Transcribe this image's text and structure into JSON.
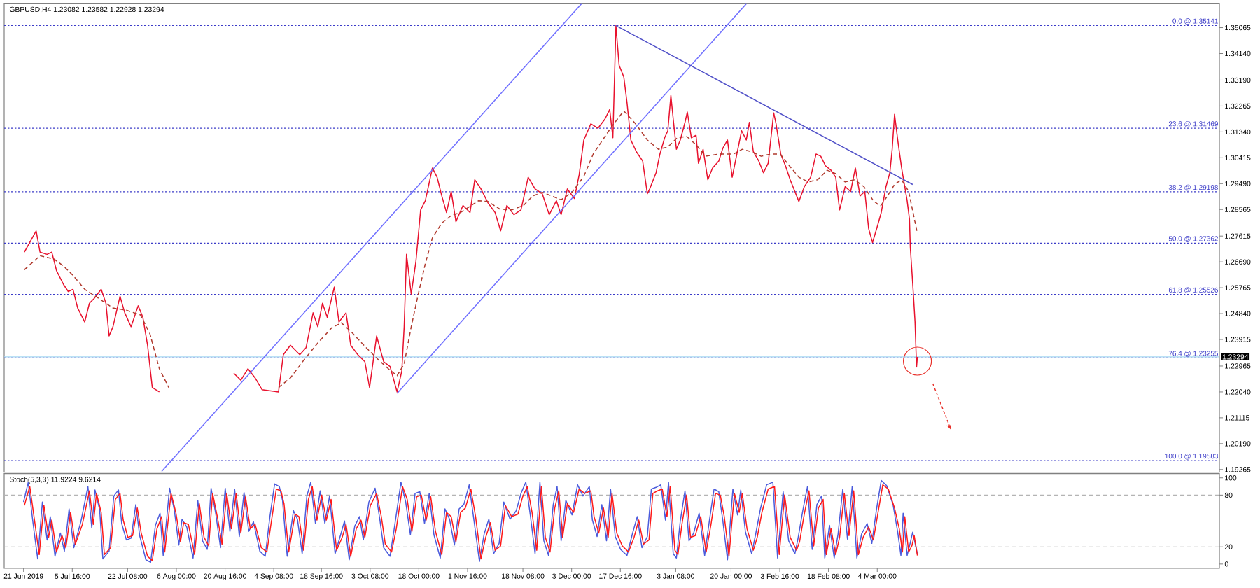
{
  "chart_data": [
    {
      "type": "line",
      "title": "GBPUSD,H4 1.23082 1.23582 1.22928 1.23294",
      "xlim": [
        "2019-06-15T04:00",
        "2020-06-15T00:00"
      ],
      "ylim": [
        1.1917,
        1.3592
      ],
      "yticks": [
        {
          "value": 1.19265,
          "label": "1.19265"
        },
        {
          "value": 1.2019,
          "label": "1.20190"
        },
        {
          "value": 1.21115,
          "label": "1.21115"
        },
        {
          "value": 1.2204,
          "label": "1.22040"
        },
        {
          "value": 1.22965,
          "label": "1.22965"
        },
        {
          "value": 1.23915,
          "label": "1.23915"
        },
        {
          "value": 1.2484,
          "label": "1.24840"
        },
        {
          "value": 1.25765,
          "label": "1.25765"
        },
        {
          "value": 1.2669,
          "label": "1.26690"
        },
        {
          "value": 1.27615,
          "label": "1.27615"
        },
        {
          "value": 1.28565,
          "label": "1.28565"
        },
        {
          "value": 1.2949,
          "label": "1.29490"
        },
        {
          "value": 1.30415,
          "label": "1.30415"
        },
        {
          "value": 1.3134,
          "label": "1.31340"
        },
        {
          "value": 1.32265,
          "label": "1.32265"
        },
        {
          "value": 1.3319,
          "label": "1.33190"
        },
        {
          "value": 1.3414,
          "label": "1.34140"
        },
        {
          "value": 1.35065,
          "label": "1.35065"
        }
      ],
      "ref_lines": [
        {
          "axis": "y",
          "value": 1.23294,
          "label": "1.23294",
          "color": "#a6d8f2"
        },
        {
          "axis": "y",
          "value": 1.35141,
          "label": "0.0 @ 1.35141",
          "color": "#3c3cc8",
          "line_style": "dotted"
        },
        {
          "axis": "y",
          "value": 1.31469,
          "label": "23.6 @ 1.31469",
          "color": "#3c3cc8",
          "line_style": "dotted"
        },
        {
          "axis": "y",
          "value": 1.29198,
          "label": "38.2 @ 1.29198",
          "color": "#3c3cc8",
          "line_style": "dotted"
        },
        {
          "axis": "y",
          "value": 1.27362,
          "label": "50.0 @ 1.27362",
          "color": "#3c3cc8",
          "line_style": "dotted"
        },
        {
          "axis": "y",
          "value": 1.25526,
          "label": "61.8 @ 1.25526",
          "color": "#3c3cc8",
          "line_style": "dotted"
        },
        {
          "axis": "y",
          "value": 1.23255,
          "label": "76.4 @ 1.23255",
          "color": "#3c3cc8",
          "line_style": "dotted"
        },
        {
          "axis": "y",
          "value": 1.19583,
          "label": "100.0 @ 1.19583",
          "color": "#3c3cc8",
          "line_style": "dotted"
        }
      ],
      "series": [
        {
          "color": "#e8112d",
          "x": [
            "2019-06-21T06:00",
            "2019-06-24T19:00",
            "2019-06-25T23:00",
            "2019-06-28T02:00",
            "2019-06-29T12:00",
            "2019-06-30T22:00",
            "2019-07-03T01:00",
            "2019-07-04T11:00",
            "2019-07-05T21:00",
            "2019-07-07T07:00",
            "2019-07-09T10:00",
            "2019-07-10T20:00",
            "2019-07-12T06:00",
            "2019-07-14T09:00",
            "2019-07-15T19:00",
            "2019-07-16T18:00",
            "2019-07-17T22:00",
            "2019-07-20T01:00",
            "2019-07-21T11:00",
            "2019-07-23T09:00",
            "2019-07-25T12:00",
            "2019-07-26T22:00",
            "2019-07-28T08:00",
            "2019-07-29T18:00",
            "2019-07-31T21:00",
            "2019-08-11T23:00",
            "2019-08-23T07:00",
            "2019-08-25T10:00",
            "2019-08-27T13:00",
            "2019-08-29T17:00",
            "2019-08-31T19:00",
            "2019-09-05T18:00",
            "2019-09-07T05:00",
            "2019-09-09T08:00",
            "2019-09-12T04:00",
            "2019-09-14T01:00",
            "2019-09-16T04:00",
            "2019-09-17T14:00",
            "2019-09-19T00:00",
            "2019-09-20T10:00",
            "2019-09-22T13:00",
            "2019-09-23T23:00",
            "2019-09-26T02:00",
            "2019-09-27T12:00",
            "2019-09-29T15:00",
            "2019-10-01T18:00",
            "2019-10-03T04:00",
            "2019-10-05T07:00",
            "2019-10-07T10:00",
            "2019-10-09T08:00",
            "2019-10-11T11:00",
            "2019-10-12T21:00",
            "2019-10-13T14:00",
            "2019-10-14T07:00",
            "2019-10-15T17:00",
            "2019-10-17T03:00",
            "2019-10-18T13:00",
            "2019-10-19T23:00",
            "2019-10-22T02:00",
            "2019-10-23T12:00",
            "2019-10-24T22:00",
            "2019-10-26T08:00",
            "2019-10-27T18:00",
            "2019-10-29T04:00",
            "2019-10-31T07:00",
            "2019-11-02T10:00",
            "2019-11-03T20:00",
            "2019-11-05T17:00",
            "2019-11-07T20:00",
            "2019-11-09T23:00",
            "2019-11-11T15:00",
            "2019-11-13T12:00",
            "2019-11-15T15:00",
            "2019-11-17T18:00",
            "2019-11-19T22:00",
            "2019-11-22T00:00",
            "2019-11-24T04:00",
            "2019-11-26T06:00",
            "2019-11-28T10:00",
            "2019-11-29T20:00",
            "2019-12-01T17:00",
            "2019-12-03T20:00",
            "2019-12-05T06:00",
            "2019-12-06T16:00",
            "2019-12-08T19:00",
            "2019-12-10T22:00",
            "2019-12-13T01:00",
            "2019-12-14T11:00",
            "2019-12-15T10:00",
            "2019-12-16T08:00",
            "2019-12-17T07:00",
            "2019-12-18T17:00",
            "2019-12-19T16:00",
            "2019-12-20T20:00",
            "2019-12-22T12:00",
            "2019-12-24T09:00",
            "2019-12-25T19:00",
            "2019-12-26T12:00",
            "2019-12-28T10:00",
            "2019-12-29T14:00",
            "2019-12-31T00:00",
            "2019-12-31T23:00",
            "2020-01-01T21:00",
            "2020-01-02T14:00",
            "2020-01-03T13:00",
            "2020-01-04T17:00",
            "2020-01-06T03:00",
            "2020-01-06T20:00",
            "2020-01-08T01:00",
            "2020-01-09T11:00",
            "2020-01-10T04:00",
            "2020-01-11T14:00",
            "2020-01-13T00:00",
            "2020-01-14T10:00",
            "2020-01-16T07:00",
            "2020-01-17T12:00",
            "2020-01-18T22:00",
            "2020-01-20T08:00",
            "2020-01-21T18:00",
            "2020-01-23T04:00",
            "2020-01-24T14:00",
            "2020-01-25T12:00",
            "2020-01-26T17:00",
            "2020-01-28T08:00",
            "2020-01-29T18:00",
            "2020-01-31T04:00",
            "2020-02-01T20:00",
            "2020-02-02T13:00",
            "2020-02-03T23:00",
            "2020-02-05T09:00",
            "2020-02-06T19:00",
            "2020-02-08T05:00",
            "2020-02-09T10:00",
            "2020-02-11T01:00",
            "2020-02-12T23:00",
            "2020-02-14T14:00",
            "2020-02-16T00:00",
            "2020-02-17T10:00",
            "2020-02-19T02:00",
            "2020-02-20T12:00",
            "2020-02-21T16:00",
            "2020-02-23T08:00",
            "2020-02-25T00:00",
            "2020-02-26T10:00",
            "2020-02-27T20:00",
            "2020-02-29T06:00",
            "2020-03-01T10:00",
            "2020-03-02T14:00",
            "2020-03-04T06:00",
            "2020-03-05T05:00",
            "2020-03-06T15:00",
            "2020-03-07T19:00",
            "2020-03-08T12:00",
            "2020-03-09T05:00",
            "2020-03-10T04:00",
            "2020-03-11T08:00",
            "2020-03-12T01:00",
            "2020-03-13T00:00",
            "2020-03-13T17:00",
            "2020-03-13T23:00",
            "2020-03-14T10:00",
            "2020-03-14T21:00",
            "2020-03-15T09:00",
            "2020-03-15T20:00",
            "2020-03-16T02:00"
          ],
          "values": [
            1.2704,
            1.278,
            1.2704,
            1.2696,
            1.2704,
            1.2638,
            1.2588,
            1.2563,
            1.2571,
            1.2504,
            1.2454,
            1.2521,
            1.2538,
            1.2571,
            1.2521,
            1.2404,
            1.2437,
            1.2546,
            1.2487,
            1.2437,
            1.2512,
            1.2471,
            1.2371,
            1.222,
            1.2204,
            null,
            1.2271,
            1.2246,
            1.2287,
            1.2254,
            1.2212,
            1.2204,
            1.2337,
            1.2371,
            1.2337,
            1.2362,
            1.2487,
            1.2437,
            1.2521,
            1.2471,
            1.2579,
            1.2454,
            1.2487,
            1.2371,
            1.2337,
            1.2312,
            1.222,
            1.2404,
            1.2312,
            1.2295,
            1.2204,
            1.2279,
            1.2437,
            1.2696,
            1.2554,
            1.2671,
            1.2855,
            1.2888,
            1.3005,
            1.2972,
            1.2905,
            1.2846,
            1.2921,
            1.2813,
            1.2871,
            1.2846,
            1.2963,
            1.293,
            1.288,
            1.2846,
            1.278,
            1.2871,
            1.2838,
            1.2855,
            1.2972,
            1.293,
            1.2913,
            1.2838,
            1.2888,
            1.2838,
            1.293,
            1.2896,
            1.298,
            1.3105,
            1.3163,
            1.3147,
            1.318,
            1.3214,
            1.3113,
            1.3514,
            1.3372,
            1.333,
            1.3239,
            1.3105,
            1.3063,
            1.303,
            1.2913,
            1.293,
            1.2988,
            1.3055,
            1.3113,
            1.3138,
            1.3264,
            1.318,
            1.3072,
            1.3105,
            1.3168,
            1.3205,
            1.3113,
            1.3122,
            1.3022,
            1.3072,
            1.2963,
            1.3005,
            1.303,
            1.3075,
            1.3105,
            1.2972,
            1.3055,
            1.3138,
            1.3105,
            1.3168,
            1.3063,
            1.303,
            1.2988,
            1.3022,
            1.3202,
            1.3163,
            1.3055,
            1.3013,
            1.2963,
            1.2921,
            1.2885,
            1.2938,
            1.2972,
            1.3055,
            1.3047,
            1.3013,
            1.2997,
            1.2972,
            1.2855,
            1.2938,
            1.2921,
            1.3005,
            1.2905,
            1.2921,
            1.2788,
            1.2738,
            1.2805,
            1.2846,
            1.2938,
            1.2988,
            1.3072,
            1.3197,
            1.3105,
            1.3005,
            1.2955,
            1.2888,
            1.2821,
            1.2721,
            1.2638,
            1.2554,
            1.2454,
            1.2293,
            1.2329
          ]
        },
        {
          "color": "#b03a2e",
          "line_style": "dashed",
          "x": [
            "2019-06-21T06:00",
            "2019-06-25T23:00",
            "2019-06-30T05:00",
            "2019-07-03T01:00",
            "2019-07-05T21:00",
            "2019-07-09T10:00",
            "2019-07-13T16:00",
            "2019-07-17T22:00",
            "2019-07-21T23:00",
            "2019-07-26T05:00",
            "2019-07-29T01:00",
            "2019-07-31T21:00",
            "2019-08-03T17:00",
            "2019-08-11T23:00",
            "2019-09-05T18:00",
            "2019-09-09T08:00",
            "2019-09-13T08:00",
            "2019-09-17T14:00",
            "2019-09-21T20:00",
            "2019-09-24T16:00",
            "2019-09-27T12:00",
            "2019-10-01T18:00",
            "2019-10-06T00:00",
            "2019-10-08T20:00",
            "2019-10-11T11:00",
            "2019-10-13T14:00",
            "2019-10-15T17:00",
            "2019-10-17T20:00",
            "2019-10-19T23:00",
            "2019-10-22T02:00",
            "2019-10-24T22:00",
            "2019-10-27T18:00",
            "2019-10-30T14:00",
            "2019-11-02T10:00",
            "2019-11-05T00:00",
            "2019-11-07T20:00",
            "2019-11-11T09:00",
            "2019-11-14T23:00",
            "2019-11-18T12:00",
            "2019-11-21T07:00",
            "2019-11-24T04:00",
            "2019-11-27T00:00",
            "2019-11-29T20:00",
            "2019-12-03T03:00",
            "2019-12-06T16:00",
            "2019-12-09T12:00",
            "2019-12-12T08:00",
            "2019-12-15T04:00",
            "2019-12-18T17:00",
            "2019-12-22T06:00",
            "2019-12-25T19:00",
            "2019-12-29T03:00",
            "2019-12-31T23:00",
            "2020-01-03T19:00",
            "2020-01-06T15:00",
            "2020-01-09T11:00",
            "2020-01-12T07:00",
            "2020-01-16T13:00",
            "2020-01-20T19:00",
            "2020-01-23T09:00",
            "2020-01-26T05:00",
            "2020-01-29T01:00",
            "2020-01-31T21:00",
            "2020-02-03T18:00",
            "2020-02-06T13:00",
            "2020-02-09T10:00",
            "2020-02-12T06:00",
            "2020-02-15T01:00",
            "2020-02-17T22:00",
            "2020-02-20T12:00",
            "2020-02-23T08:00",
            "2020-02-26T04:00",
            "2020-02-29T00:00",
            "2020-03-02T20:00",
            "2020-03-04T23:00",
            "2020-03-07T02:00",
            "2020-03-09T05:00",
            "2020-03-11T08:00",
            "2020-03-13T11:00",
            "2020-03-16T02:00"
          ],
          "values": [
            1.2641,
            1.2691,
            1.2679,
            1.2654,
            1.2621,
            1.2571,
            1.2538,
            1.2504,
            1.2496,
            1.2479,
            1.2412,
            1.2287,
            1.222,
            null,
            1.222,
            1.2254,
            1.2317,
            1.2379,
            1.2434,
            1.2451,
            1.2421,
            1.2367,
            1.2317,
            1.2287,
            1.2262,
            1.2304,
            1.2437,
            1.2554,
            1.2663,
            1.2755,
            1.2808,
            1.2835,
            1.2846,
            1.2868,
            1.2888,
            1.2885,
            1.2858,
            1.2855,
            1.2871,
            1.2905,
            1.2918,
            1.2905,
            1.2891,
            1.2918,
            1.2975,
            1.3055,
            1.3105,
            1.3155,
            1.3209,
            1.3163,
            1.3105,
            1.3072,
            1.308,
            1.3113,
            1.3118,
            1.3088,
            1.3047,
            1.3055,
            1.3055,
            1.3072,
            1.3063,
            1.3047,
            1.3055,
            1.3055,
            1.3013,
            1.2972,
            1.2955,
            1.2963,
            1.2997,
            1.2985,
            1.2955,
            1.2963,
            1.2938,
            1.2888,
            1.2868,
            1.2905,
            1.2946,
            1.2963,
            1.2921,
            1.2771
          ]
        },
        {
          "color": "#7070ff",
          "x": [
            "2019-08-01T14:00",
            "2019-12-05T23:00"
          ],
          "values": [
            1.192,
            1.3592
          ]
        },
        {
          "color": "#7070ff",
          "x": [
            "2019-10-11T11:00",
            "2020-01-24T14:00"
          ],
          "values": [
            1.2199,
            1.3592
          ]
        },
        {
          "color": "#5050c8",
          "x": [
            "2019-12-16T08:00",
            "2020-03-14T16:00"
          ],
          "values": [
            1.3514,
            1.2946
          ]
        }
      ]
    },
    {
      "type": "line",
      "title": "Stoch(5,3,3) 11.9224 9.6214",
      "xlim": [
        "2019-06-15T04:00",
        "2020-06-15T00:00"
      ],
      "ylim": [
        -5,
        105
      ],
      "yticks": [
        0,
        20,
        80,
        100
      ],
      "xticks": [
        {
          "value": "2019-06-21T00:00",
          "label": "21 Jun 2019"
        },
        {
          "value": "2019-07-05T16:00",
          "label": "5 Jul 16:00"
        },
        {
          "value": "2019-07-22T08:00",
          "label": "22 Jul 08:00"
        },
        {
          "value": "2019-08-06T00:00",
          "label": "6 Aug 00:00"
        },
        {
          "value": "2019-08-20T16:00",
          "label": "20 Aug 16:00"
        },
        {
          "value": "2019-09-04T08:00",
          "label": "4 Sep 08:00"
        },
        {
          "value": "2019-09-18T16:00",
          "label": "18 Sep 16:00"
        },
        {
          "value": "2019-10-03T08:00",
          "label": "3 Oct 08:00"
        },
        {
          "value": "2019-10-18T00:00",
          "label": "18 Oct 00:00"
        },
        {
          "value": "2019-11-01T16:00",
          "label": "1 Nov 16:00"
        },
        {
          "value": "2019-11-18T08:00",
          "label": "18 Nov 08:00"
        },
        {
          "value": "2019-12-03T00:00",
          "label": "3 Dec 00:00"
        },
        {
          "value": "2019-12-17T16:00",
          "label": "17 Dec 16:00"
        },
        {
          "value": "2020-01-03T08:00",
          "label": "3 Jan 08:00"
        },
        {
          "value": "2020-01-20T00:00",
          "label": "20 Jan 00:00"
        },
        {
          "value": "2020-02-03T16:00",
          "label": "3 Feb 16:00"
        },
        {
          "value": "2020-02-18T08:00",
          "label": "18 Feb 08:00"
        },
        {
          "value": "2020-03-04T00:00",
          "label": "4 Mar 00:00"
        }
      ],
      "ref_lines": [
        {
          "axis": "y",
          "value": 20,
          "color": "#b4b4b4",
          "line_style": "dashed"
        },
        {
          "axis": "y",
          "value": 80,
          "color": "#b4b4b4",
          "line_style": "dashed"
        }
      ],
      "series": [
        {
          "color": "#4b5bdc",
          "x": [
            "2019-06-21T00:00",
            "2019-06-22T10:00",
            "2019-06-23T20:00",
            "2019-06-25T06:00",
            "2019-06-26T16:00",
            "2019-06-28T02:00",
            "2019-06-29T01:00",
            "2019-06-30T11:00",
            "2019-07-02T02:00",
            "2019-07-03T07:00",
            "2019-07-04T17:00",
            "2019-07-06T03:00",
            "2019-07-08T06:00",
            "2019-07-10T09:00",
            "2019-07-11T13:00",
            "2019-07-12T12:00",
            "2019-07-13T22:00",
            "2019-07-14T21:00",
            "2019-07-16T18:00",
            "2019-07-18T04:00",
            "2019-07-19T14:00",
            "2019-07-20T13:00",
            "2019-07-21T23:00",
            "2019-07-23T09:00",
            "2019-07-24T19:00",
            "2019-07-25T23:00",
            "2019-07-27T20:00",
            "2019-07-29T06:00",
            "2019-07-30T17:00",
            "2019-08-01T02:00",
            "2019-08-02T01:00",
            "2019-08-03T23:00",
            "2019-08-05T09:00",
            "2019-08-06T18:00",
            "2019-08-07T17:00",
            "2019-08-09T03:00",
            "2019-08-11T01:00",
            "2019-08-12T11:00",
            "2019-08-13T21:00",
            "2019-08-15T07:00",
            "2019-08-16T11:00",
            "2019-08-17T21:00",
            "2019-08-19T07:00",
            "2019-08-20T17:00",
            "2019-08-22T03:00",
            "2019-08-23T13:00",
            "2019-08-24T23:00",
            "2019-08-26T09:00",
            "2019-08-27T19:00",
            "2019-08-29T05:00",
            "2019-08-31T03:00",
            "2019-09-01T18:00",
            "2019-09-03T04:00",
            "2019-09-04T14:00",
            "2019-09-06T00:00",
            "2019-09-06T23:00",
            "2019-09-08T09:00",
            "2019-09-10T06:00",
            "2019-09-11T11:00",
            "2019-09-12T21:00",
            "2019-09-14T07:00",
            "2019-09-15T11:00",
            "2019-09-16T21:00",
            "2019-09-18T07:00",
            "2019-09-19T17:00",
            "2019-09-21T03:00",
            "2019-09-22T19:00",
            "2019-09-24T11:00",
            "2019-09-25T15:00",
            "2019-09-27T01:00",
            "2019-09-28T17:00",
            "2019-09-30T03:00",
            "2019-10-01T07:00",
            "2019-10-02T23:00",
            "2019-10-04T20:00",
            "2019-10-06T06:00",
            "2019-10-07T10:00",
            "2019-10-09T08:00",
            "2019-10-10T18:00",
            "2019-10-12T15:00",
            "2019-10-14T01:00",
            "2019-10-15T11:00",
            "2019-10-16T21:00",
            "2019-10-18T07:00",
            "2019-10-19T17:00",
            "2019-10-21T03:00",
            "2019-10-22T13:00",
            "2019-10-24T11:00",
            "2019-10-25T21:00",
            "2019-10-27T06:00",
            "2019-10-28T17:00",
            "2019-10-30T03:00",
            "2019-10-31T13:00",
            "2019-11-02T04:00",
            "2019-11-03T14:00",
            "2019-11-05T06:00",
            "2019-11-06T16:00",
            "2019-11-08T02:00",
            "2019-11-09T12:00",
            "2019-11-11T04:00",
            "2019-11-12T14:00",
            "2019-11-14T11:00",
            "2019-11-16T08:00",
            "2019-11-17T18:00",
            "2019-11-19T05:00",
            "2019-11-20T14:00",
            "2019-11-22T00:00",
            "2019-11-23T11:00",
            "2019-11-24T15:00",
            "2019-11-26T01:00",
            "2019-11-27T11:00",
            "2019-11-28T15:00",
            "2019-11-29T20:00",
            "2019-12-01T06:00",
            "2019-12-03T03:00",
            "2019-12-04T19:00",
            "2019-12-06T10:00",
            "2019-12-08T08:00",
            "2019-12-09T06:00",
            "2019-12-10T16:00",
            "2019-12-12T02:00",
            "2019-12-13T12:00",
            "2019-12-14T17:00",
            "2019-12-16T03:00",
            "2019-12-17T18:00",
            "2019-12-19T16:00",
            "2019-12-21T07:00",
            "2019-12-22T18:00",
            "2019-12-24T04:00",
            "2019-12-25T19:00",
            "2019-12-27T00:00",
            "2019-12-28T10:00",
            "2019-12-29T20:00",
            "2019-12-31T06:00",
            "2020-01-01T04:00",
            "2020-01-02T14:00",
            "2020-01-03T13:00",
            "2020-01-04T17:00",
            "2020-01-06T03:00",
            "2020-01-07T08:00",
            "2020-01-08T18:00",
            "2020-01-10T09:00",
            "2020-01-12T01:00",
            "2020-01-13T11:00",
            "2020-01-14T21:00",
            "2020-01-16T07:00",
            "2020-01-17T12:00",
            "2020-01-18T22:00",
            "2020-01-20T13:00",
            "2020-01-21T23:00",
            "2020-01-22T22:00",
            "2020-01-24T08:00",
            "2020-01-26T05:00",
            "2020-01-27T10:00",
            "2020-01-28T20:00",
            "2020-01-30T17:00",
            "2020-02-01T14:00",
            "2020-02-03T00:00",
            "2020-02-04T16:00",
            "2020-02-06T08:00",
            "2020-02-08T05:00",
            "2020-02-09T04:00",
            "2020-02-10T14:00",
            "2020-02-12T00:00",
            "2020-02-13T10:00",
            "2020-02-14T20:00",
            "2020-02-16T06:00",
            "2020-02-17T05:00",
            "2020-02-18T15:00",
            "2020-02-20T01:00",
            "2020-02-21T05:00",
            "2020-02-22T15:00",
            "2020-02-24T01:00",
            "2020-02-25T11:00",
            "2020-02-26T21:00",
            "2020-02-28T07:00",
            "2020-02-29T23:00",
            "2020-03-02T09:00",
            "2020-03-03T19:00",
            "2020-03-05T05:00",
            "2020-03-06T20:00",
            "2020-03-08T18:00",
            "2020-03-10T04:00",
            "2020-03-11T03:00",
            "2020-03-11T19:00",
            "2020-03-13T00:00",
            "2020-03-13T23:00",
            "2020-03-14T16:00",
            "2020-03-16T02:00"
          ],
          "values": [
            72,
            95,
            48,
            6,
            72,
            28,
            55,
            9,
            36,
            15,
            64,
            19,
            49,
            90,
            42,
            86,
            63,
            6,
            15,
            79,
            86,
            47,
            28,
            30,
            69,
            33,
            5,
            2,
            45,
            59,
            10,
            88,
            63,
            22,
            52,
            43,
            7,
            74,
            27,
            17,
            88,
            58,
            19,
            88,
            38,
            87,
            32,
            83,
            38,
            49,
            15,
            9,
            55,
            93,
            90,
            74,
            9,
            62,
            52,
            12,
            79,
            95,
            47,
            85,
            47,
            79,
            12,
            34,
            50,
            5,
            44,
            55,
            28,
            72,
            88,
            52,
            19,
            9,
            45,
            95,
            72,
            34,
            82,
            84,
            47,
            82,
            34,
            7,
            64,
            52,
            22,
            64,
            69,
            92,
            51,
            3,
            35,
            52,
            12,
            24,
            72,
            52,
            62,
            82,
            95,
            56,
            12,
            95,
            27,
            10,
            69,
            90,
            27,
            74,
            57,
            92,
            79,
            90,
            51,
            32,
            69,
            27,
            87,
            32,
            17,
            10,
            35,
            55,
            19,
            32,
            87,
            89,
            92,
            51,
            95,
            12,
            7,
            50,
            85,
            27,
            36,
            59,
            10,
            50,
            87,
            84,
            51,
            5,
            87,
            57,
            86,
            37,
            12,
            35,
            64,
            92,
            95,
            7,
            84,
            27,
            12,
            30,
            62,
            90,
            17,
            69,
            79,
            7,
            45,
            7,
            35,
            87,
            29,
            90,
            7,
            35,
            47,
            24,
            64,
            97,
            91,
            69,
            37,
            10,
            59,
            10,
            25,
            37,
            12
          ]
        },
        {
          "color": "#ff1a1a",
          "x": [
            "2019-06-21T06:00",
            "2019-06-22T21:00",
            "2019-06-24T07:00",
            "2019-06-25T17:00",
            "2019-06-27T03:00",
            "2019-06-28T13:00",
            "2019-06-29T12:00",
            "2019-06-30T22:00",
            "2019-07-02T14:00",
            "2019-07-03T18:00",
            "2019-07-05T04:00",
            "2019-07-06T14:00",
            "2019-07-08T17:00",
            "2019-07-10T20:00",
            "2019-07-12T00:00",
            "2019-07-12T23:00",
            "2019-07-14T09:00",
            "2019-07-15T08:00",
            "2019-07-17T05:00",
            "2019-07-18T15:00",
            "2019-07-20T01:00",
            "2019-07-21T00:00",
            "2019-07-22T10:00",
            "2019-07-23T20:00",
            "2019-07-25T06:00",
            "2019-07-26T10:00",
            "2019-07-28T08:00",
            "2019-07-29T18:00",
            "2019-07-31T04:00",
            "2019-08-01T14:00",
            "2019-08-02T12:00",
            "2019-08-04T10:00",
            "2019-08-05T20:00",
            "2019-08-07T06:00",
            "2019-08-08T05:00",
            "2019-08-09T15:00",
            "2019-08-11T12:00",
            "2019-08-12T22:00",
            "2019-08-14T08:00",
            "2019-08-15T18:00",
            "2019-08-16T22:00",
            "2019-08-18T08:00",
            "2019-08-19T18:00",
            "2019-08-21T04:00",
            "2019-08-22T14:00",
            "2019-08-24T00:00",
            "2019-08-25T10:00",
            "2019-08-26T20:00",
            "2019-08-28T06:00",
            "2019-08-29T17:00",
            "2019-08-31T14:00",
            "2019-09-02T06:00",
            "2019-09-03T16:00",
            "2019-09-05T02:00",
            "2019-09-06T12:00",
            "2019-09-07T10:00",
            "2019-09-08T20:00",
            "2019-09-10T18:00",
            "2019-09-11T22:00",
            "2019-09-13T08:00",
            "2019-09-14T18:00",
            "2019-09-15T22:00",
            "2019-09-17T08:00",
            "2019-09-18T18:00",
            "2019-09-20T04:00",
            "2019-09-21T14:00",
            "2019-09-23T06:00",
            "2019-09-24T22:00",
            "2019-09-26T02:00",
            "2019-09-27T12:00",
            "2019-09-29T04:00",
            "2019-09-30T14:00",
            "2019-10-01T18:00",
            "2019-10-03T10:00",
            "2019-10-05T07:00",
            "2019-10-06T17:00",
            "2019-10-07T22:00",
            "2019-10-09T19:00",
            "2019-10-11T05:00",
            "2019-10-13T02:00",
            "2019-10-14T12:00",
            "2019-10-15T22:00",
            "2019-10-17T08:00",
            "2019-10-18T18:00",
            "2019-10-20T05:00",
            "2019-10-21T14:00",
            "2019-10-23T00:00",
            "2019-10-24T22:00",
            "2019-10-26T08:00",
            "2019-10-27T18:00",
            "2019-10-29T04:00",
            "2019-10-30T14:00",
            "2019-11-01T00:00",
            "2019-11-02T16:00",
            "2019-11-04T02:00",
            "2019-11-05T17:00",
            "2019-11-07T03:00",
            "2019-11-08T13:00",
            "2019-11-09T23:00",
            "2019-11-11T15:00",
            "2019-11-13T01:00",
            "2019-11-14T23:00",
            "2019-11-16T20:00",
            "2019-11-18T06:00",
            "2019-11-19T16:00",
            "2019-11-21T02:00",
            "2019-11-22T12:00",
            "2019-11-23T22:00",
            "2019-11-25T02:00",
            "2019-11-26T12:00",
            "2019-11-27T22:00",
            "2019-11-29T03:00",
            "2019-11-30T07:00",
            "2019-12-01T17:00",
            "2019-12-03T14:00",
            "2019-12-05T06:00",
            "2019-12-06T22:00",
            "2019-12-08T19:00",
            "2019-12-09T18:00",
            "2019-12-11T04:00",
            "2019-12-12T14:00",
            "2019-12-14T00:00",
            "2019-12-15T04:00",
            "2019-12-16T14:00",
            "2019-12-18T06:00",
            "2019-12-20T03:00",
            "2019-12-21T19:00",
            "2019-12-23T05:00",
            "2019-12-24T15:00",
            "2019-12-26T07:00",
            "2019-12-27T11:00",
            "2019-12-28T21:00",
            "2019-12-30T07:00",
            "2019-12-31T17:00",
            "2020-01-01T16:00",
            "2020-01-03T02:00",
            "2020-01-04T00:00",
            "2020-01-05T05:00",
            "2020-01-06T15:00",
            "2020-01-07T19:00",
            "2020-01-09T05:00",
            "2020-01-10T21:00",
            "2020-01-12T12:00",
            "2020-01-13T23:00",
            "2020-01-15T08:00",
            "2020-01-16T18:00",
            "2020-01-17T23:00",
            "2020-01-19T09:00",
            "2020-01-21T00:00",
            "2020-01-22T11:00",
            "2020-01-23T09:00",
            "2020-01-24T19:00",
            "2020-01-26T17:00",
            "2020-01-27T21:00",
            "2020-01-29T07:00",
            "2020-01-31T04:00",
            "2020-02-02T02:00",
            "2020-02-03T12:00",
            "2020-02-05T03:00",
            "2020-02-06T19:00",
            "2020-02-08T17:00",
            "2020-02-09T15:00",
            "2020-02-11T01:00",
            "2020-02-12T11:00",
            "2020-02-13T21:00",
            "2020-02-15T07:00",
            "2020-02-16T17:00",
            "2020-02-17T16:00",
            "2020-02-19T02:00",
            "2020-02-20T12:00",
            "2020-02-21T16:00",
            "2020-02-23T02:00",
            "2020-02-24T12:00",
            "2020-02-25T22:00",
            "2020-02-27T08:00",
            "2020-02-28T18:00",
            "2020-03-01T10:00",
            "2020-03-02T20:00",
            "2020-03-04T06:00",
            "2020-03-05T16:00",
            "2020-03-07T08:00",
            "2020-03-09T05:00",
            "2020-03-10T15:00",
            "2020-03-11T14:00",
            "2020-03-12T07:00",
            "2020-03-13T11:00",
            "2020-03-14T10:00",
            "2020-03-15T03:00",
            "2020-03-16T02:00"
          ],
          "values": [
            68,
            90,
            51,
            11,
            68,
            31,
            51,
            14,
            33,
            19,
            60,
            23,
            46,
            85,
            46,
            82,
            60,
            11,
            19,
            75,
            82,
            51,
            31,
            33,
            65,
            36,
            9,
            4,
            41,
            55,
            14,
            82,
            60,
            26,
            48,
            46,
            11,
            70,
            31,
            21,
            82,
            55,
            23,
            82,
            41,
            82,
            36,
            78,
            41,
            46,
            19,
            14,
            51,
            87,
            85,
            70,
            14,
            58,
            55,
            16,
            75,
            90,
            51,
            80,
            51,
            75,
            16,
            31,
            46,
            9,
            41,
            51,
            31,
            68,
            82,
            55,
            23,
            14,
            41,
            90,
            75,
            38,
            78,
            80,
            51,
            78,
            38,
            11,
            60,
            55,
            26,
            60,
            65,
            87,
            55,
            6,
            31,
            48,
            16,
            21,
            68,
            55,
            58,
            78,
            90,
            60,
            16,
            90,
            31,
            14,
            65,
            85,
            31,
            70,
            60,
            87,
            82,
            85,
            55,
            36,
            65,
            31,
            82,
            36,
            21,
            14,
            31,
            51,
            23,
            28,
            82,
            85,
            87,
            55,
            90,
            16,
            11,
            46,
            80,
            31,
            33,
            55,
            14,
            46,
            82,
            80,
            55,
            9,
            82,
            60,
            82,
            41,
            16,
            31,
            60,
            87,
            90,
            11,
            80,
            31,
            16,
            26,
            58,
            85,
            21,
            65,
            75,
            11,
            41,
            11,
            31,
            82,
            33,
            85,
            11,
            31,
            43,
            28,
            60,
            92,
            87,
            65,
            41,
            14,
            55,
            14,
            21,
            33,
            10
          ]
        }
      ]
    }
  ]
}
